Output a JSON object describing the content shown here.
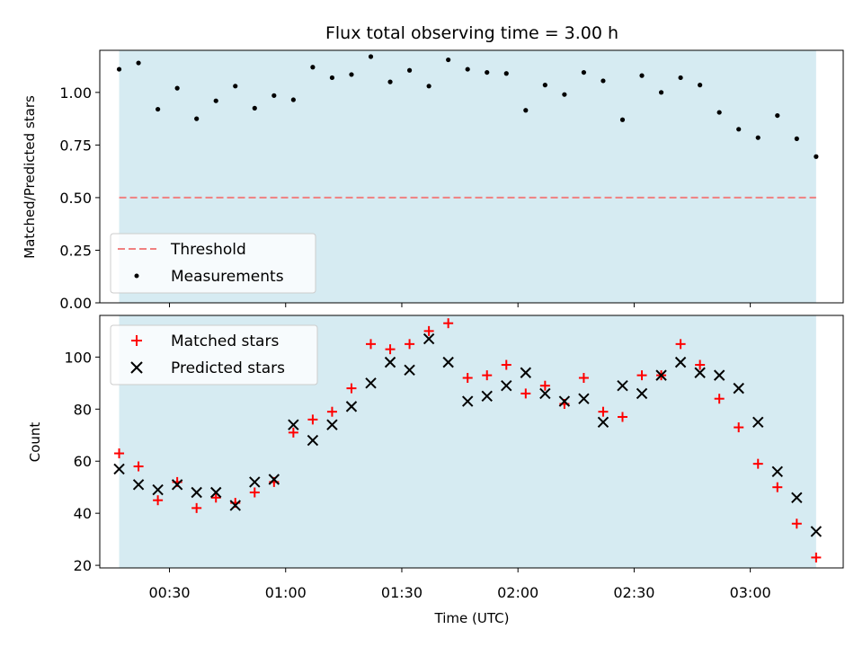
{
  "chart_data": [
    {
      "type": "scatter",
      "title": "Flux total observing time = 3.00 h",
      "xlabel": "",
      "ylabel": "Matched/Predicted stars",
      "xlim": [
        "00:12",
        "03:24"
      ],
      "ylim": [
        0.0,
        1.2
      ],
      "yticks": [
        0.0,
        0.25,
        0.5,
        0.75,
        1.0
      ],
      "ytick_labels": [
        "0.00",
        "0.25",
        "0.50",
        "0.75",
        "1.00"
      ],
      "shaded_span": [
        "00:17",
        "03:17"
      ],
      "legend": {
        "placement": "lower-left",
        "threshold_label": "Threshold",
        "measurements_label": "Measurements"
      },
      "threshold": {
        "y": 0.5,
        "color": "#f08080",
        "style": "dashed"
      },
      "series": [
        {
          "name": "Measurements",
          "marker": "dot",
          "color": "#000000",
          "x": [
            "00:17",
            "00:22",
            "00:27",
            "00:32",
            "00:37",
            "00:42",
            "00:47",
            "00:52",
            "00:57",
            "01:02",
            "01:07",
            "01:12",
            "01:17",
            "01:22",
            "01:27",
            "01:32",
            "01:37",
            "01:42",
            "01:47",
            "01:52",
            "01:57",
            "02:02",
            "02:07",
            "02:12",
            "02:17",
            "02:22",
            "02:27",
            "02:32",
            "02:37",
            "02:42",
            "02:47",
            "02:52",
            "02:57",
            "03:02",
            "03:07",
            "03:12",
            "03:17"
          ],
          "y": [
            1.11,
            1.14,
            0.92,
            1.02,
            0.875,
            0.96,
            1.03,
            0.925,
            0.985,
            0.965,
            1.12,
            1.07,
            1.085,
            1.17,
            1.05,
            1.105,
            1.03,
            1.155,
            1.11,
            1.095,
            1.09,
            0.915,
            1.035,
            0.99,
            1.095,
            1.055,
            0.87,
            1.08,
            1.0,
            1.07,
            1.035,
            0.905,
            0.825,
            0.785,
            0.89,
            0.78,
            0.695
          ]
        }
      ]
    },
    {
      "type": "scatter",
      "title": "",
      "xlabel": "Time (UTC)",
      "ylabel": "Count",
      "xlim": [
        "00:12",
        "03:24"
      ],
      "ylim": [
        19,
        116
      ],
      "yticks": [
        20,
        40,
        60,
        80,
        100
      ],
      "ytick_labels": [
        "20",
        "40",
        "60",
        "80",
        "100"
      ],
      "xticks": [
        "00:30",
        "01:00",
        "01:30",
        "02:00",
        "02:30",
        "03:00"
      ],
      "xtick_labels": [
        "00:30",
        "01:00",
        "01:30",
        "02:00",
        "02:30",
        "03:00"
      ],
      "shaded_span": [
        "00:17",
        "03:17"
      ],
      "legend": {
        "placement": "upper-left",
        "matched_label": "Matched stars",
        "predicted_label": "Predicted stars"
      },
      "x": [
        "00:17",
        "00:22",
        "00:27",
        "00:32",
        "00:37",
        "00:42",
        "00:47",
        "00:52",
        "00:57",
        "01:02",
        "01:07",
        "01:12",
        "01:17",
        "01:22",
        "01:27",
        "01:32",
        "01:37",
        "01:42",
        "01:47",
        "01:52",
        "01:57",
        "02:02",
        "02:07",
        "02:12",
        "02:17",
        "02:22",
        "02:27",
        "02:32",
        "02:37",
        "02:42",
        "02:47",
        "02:52",
        "02:57",
        "03:02",
        "03:07",
        "03:12",
        "03:17"
      ],
      "series": [
        {
          "name": "Matched stars",
          "marker": "plus",
          "color": "#ff0000",
          "values": [
            63,
            58,
            45,
            52,
            42,
            46,
            44,
            48,
            52,
            71,
            76,
            79,
            88,
            105,
            103,
            105,
            110,
            113,
            92,
            93,
            97,
            86,
            89,
            82,
            92,
            79,
            77,
            93,
            93,
            105,
            97,
            84,
            73,
            59,
            50,
            36,
            23
          ]
        },
        {
          "name": "Predicted stars",
          "marker": "x",
          "color": "#000000",
          "values": [
            57,
            51,
            49,
            51,
            48,
            48,
            43,
            52,
            53,
            74,
            68,
            74,
            81,
            90,
            98,
            95,
            107,
            98,
            83,
            85,
            89,
            94,
            86,
            83,
            84,
            75,
            89,
            86,
            93,
            98,
            94,
            93,
            88,
            75,
            56,
            46,
            33
          ]
        }
      ]
    }
  ],
  "colors": {
    "span": "#add8e6",
    "threshold": "#f08080",
    "matched": "#ff0000",
    "predicted": "#000000"
  }
}
